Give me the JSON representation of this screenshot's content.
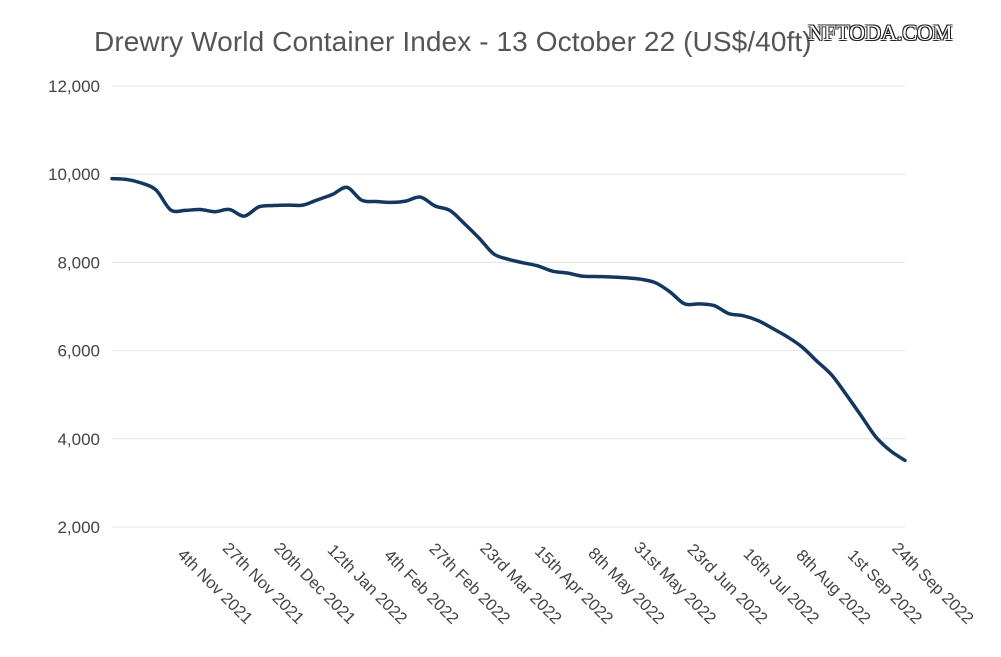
{
  "watermark": "NFTODA.COM",
  "chart_data": {
    "type": "line",
    "title": "Drewry World Container Index - 13 October 22 (US$/40ft)",
    "xlabel": "",
    "ylabel": "",
    "ylim": [
      2000,
      12000
    ],
    "yticks": [
      2000,
      4000,
      6000,
      8000,
      10000,
      12000
    ],
    "ytick_labels": [
      "2,000",
      "4,000",
      "6,000",
      "8,000",
      "10,000",
      "12,000"
    ],
    "grid": true,
    "legend": "none",
    "line_color": "#14375f",
    "x_tick_labels": [
      "4th Nov 2021",
      "27th Nov 2021",
      "20th Dec 2021",
      "12th Jan 2022",
      "4th Feb 2022",
      "27th Feb 2022",
      "23rd Mar 2022",
      "15th Apr 2022",
      "8th May 2022",
      "31st May 2022",
      "23rd Jun 2022",
      "16th Jul 2022",
      "8th Aug 2022",
      "1st Sep 2022",
      "24th Sep 2022"
    ],
    "series": [
      {
        "values": [
          9900,
          9880,
          9800,
          9640,
          9190,
          9180,
          9200,
          9150,
          9200,
          9050,
          9260,
          9290,
          9300,
          9300,
          9420,
          9540,
          9700,
          9410,
          9380,
          9360,
          9390,
          9480,
          9280,
          9180,
          8880,
          8550,
          8190,
          8070,
          7990,
          7920,
          7800,
          7760,
          7690,
          7680,
          7670,
          7650,
          7620,
          7540,
          7330,
          7060,
          7060,
          7020,
          6840,
          6790,
          6680,
          6500,
          6310,
          6080,
          5760,
          5450,
          5000,
          4530,
          4050,
          3730,
          3510
        ]
      }
    ]
  }
}
